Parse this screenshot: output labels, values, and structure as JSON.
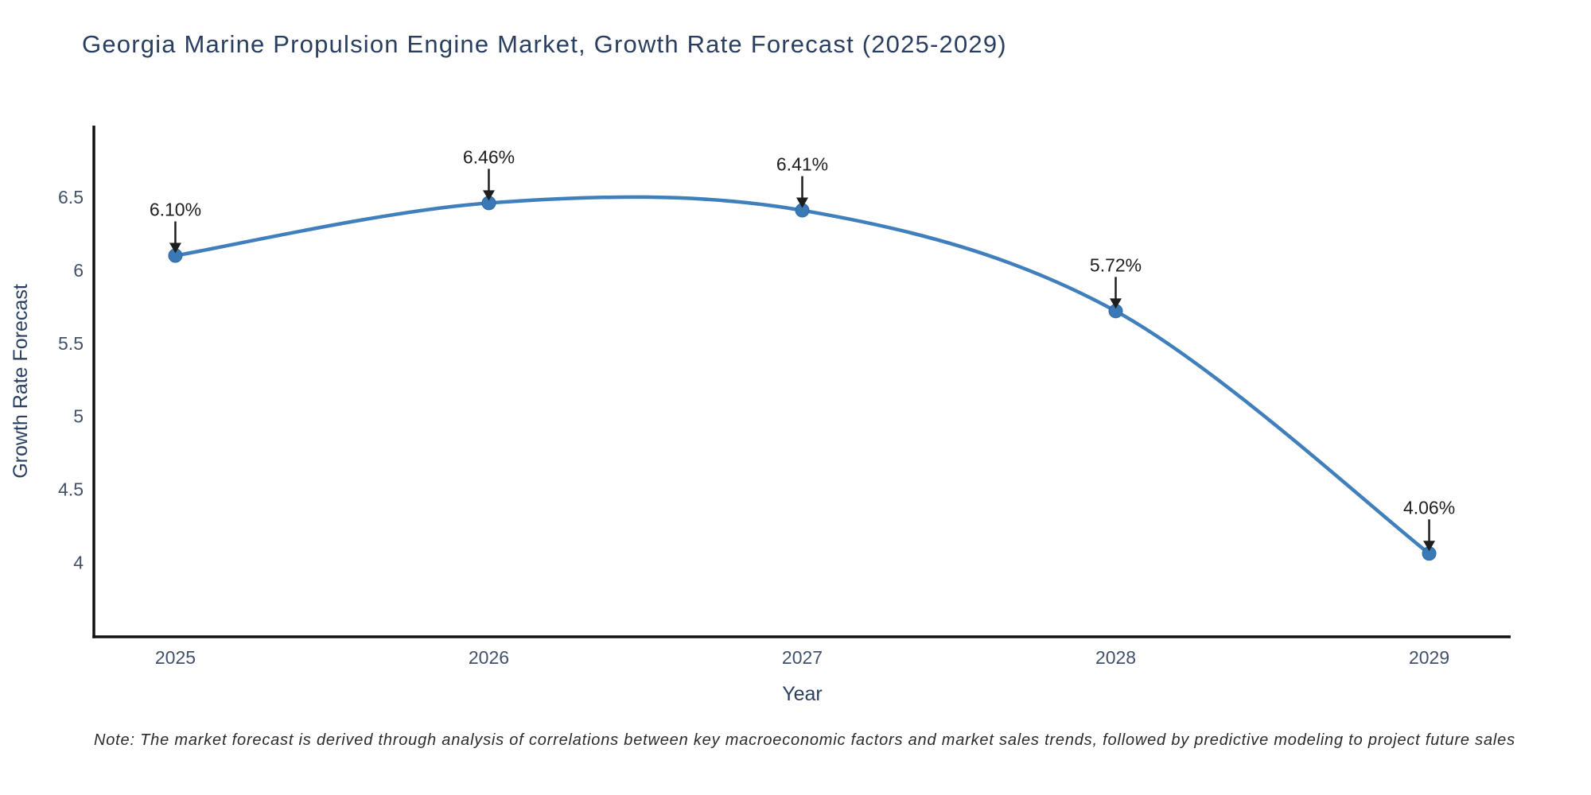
{
  "figure": {
    "title": "Georgia Marine Propulsion Engine Market, Growth Rate Forecast (2025-2029)",
    "note": "Note: The market forecast is derived through analysis of correlations between key macroeconomic factors and market sales trends, followed by predictive modeling to project future sales"
  },
  "chart_data": {
    "type": "line",
    "line_shape": "spline",
    "title": "Georgia Marine Propulsion Engine Market, Growth Rate Forecast (2025-2029)",
    "xlabel": "Year",
    "ylabel": "Growth Rate Forecast",
    "x": [
      2025,
      2026,
      2027,
      2028,
      2029
    ],
    "values": [
      6.1,
      6.46,
      6.41,
      5.72,
      4.06
    ],
    "point_labels": [
      "6.10%",
      "6.46%",
      "6.41%",
      "5.72%",
      "4.06%"
    ],
    "x_ticks": [
      2025,
      2026,
      2027,
      2028,
      2029
    ],
    "x_tick_labels": [
      "2025",
      "2026",
      "2027",
      "2028",
      "2029"
    ],
    "y_ticks": [
      4,
      4.5,
      5,
      5.5,
      6,
      6.5
    ],
    "y_tick_labels": [
      "4",
      "4.5",
      "5",
      "5.5",
      "6",
      "6.5"
    ],
    "xlim": [
      2024.74,
      2029.26
    ],
    "ylim": [
      3.49,
      6.99
    ],
    "grid": false,
    "legend_position": "none",
    "annotation_style": "black-arrow-down-to-point",
    "colors": {
      "line": "#3f7fbc",
      "marker": "#3a78b6",
      "marker_edge": "#2f6ba3",
      "annotation": "#1e1e1e",
      "axis_line": "#111111",
      "tick_label": "#42506b",
      "axis_title": "#2a3f5f",
      "title": "#2a3f5f",
      "background": "#ffffff"
    }
  }
}
